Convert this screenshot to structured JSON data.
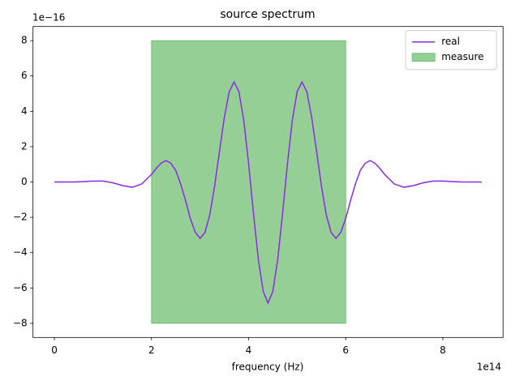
{
  "chart_data": {
    "type": "line",
    "title": "source spectrum",
    "x_label": "frequency (Hz)",
    "x_offset_label": "1e14",
    "y_offset_label": "1e−16",
    "x": [
      0,
      0.2,
      0.4,
      0.6,
      0.8,
      1.0,
      1.2,
      1.4,
      1.6,
      1.8,
      2.0,
      2.1,
      2.2,
      2.3,
      2.4,
      2.5,
      2.6,
      2.7,
      2.8,
      2.9,
      3.0,
      3.1,
      3.2,
      3.3,
      3.4,
      3.5,
      3.6,
      3.7,
      3.8,
      3.9,
      4.0,
      4.1,
      4.2,
      4.3,
      4.4,
      4.5,
      4.6,
      4.7,
      4.8,
      4.9,
      5.0,
      5.1,
      5.2,
      5.3,
      5.4,
      5.5,
      5.6,
      5.7,
      5.8,
      5.9,
      6.0,
      6.1,
      6.2,
      6.3,
      6.4,
      6.5,
      6.6,
      6.7,
      6.8,
      7.0,
      7.2,
      7.4,
      7.6,
      7.8,
      8.0,
      8.2,
      8.4,
      8.6,
      8.8
    ],
    "series": [
      {
        "name": "real",
        "color": "#8a2be2",
        "values": [
          0,
          0,
          0,
          0.02,
          0.05,
          0.05,
          -0.04,
          -0.2,
          -0.3,
          -0.11,
          0.43,
          0.78,
          1.07,
          1.21,
          1.06,
          0.65,
          -0.11,
          -1.04,
          -2.06,
          -2.84,
          -3.19,
          -2.86,
          -1.86,
          -0.23,
          1.73,
          3.65,
          5.1,
          5.66,
          5.12,
          3.49,
          1.04,
          -1.77,
          -4.37,
          -6.19,
          -6.85,
          -6.19,
          -4.37,
          -1.77,
          1.04,
          3.49,
          5.12,
          5.66,
          5.1,
          3.65,
          1.73,
          -0.23,
          -1.86,
          -2.86,
          -3.19,
          -2.84,
          -2.06,
          -1.04,
          -0.11,
          0.65,
          1.06,
          1.21,
          1.07,
          0.78,
          0.43,
          -0.11,
          -0.3,
          -0.2,
          -0.04,
          0.05,
          0.05,
          0.02,
          0,
          0,
          0
        ]
      }
    ],
    "spans": [
      {
        "name": "measure",
        "color": "#2ca02c",
        "x": [
          2,
          6
        ],
        "y": [
          -8,
          8
        ]
      }
    ],
    "xlim": [
      -0.44,
      9.24
    ],
    "ylim": [
      -8.8,
      8.8
    ],
    "xticks": [
      0,
      2,
      4,
      6,
      8
    ],
    "yticks": [
      {
        "value": -8,
        "label": "−8"
      },
      {
        "value": -6,
        "label": "−6"
      },
      {
        "value": -4,
        "label": "−4"
      },
      {
        "value": -2,
        "label": "−2"
      },
      0,
      2,
      4,
      6,
      8
    ],
    "legend": "upper-right"
  }
}
